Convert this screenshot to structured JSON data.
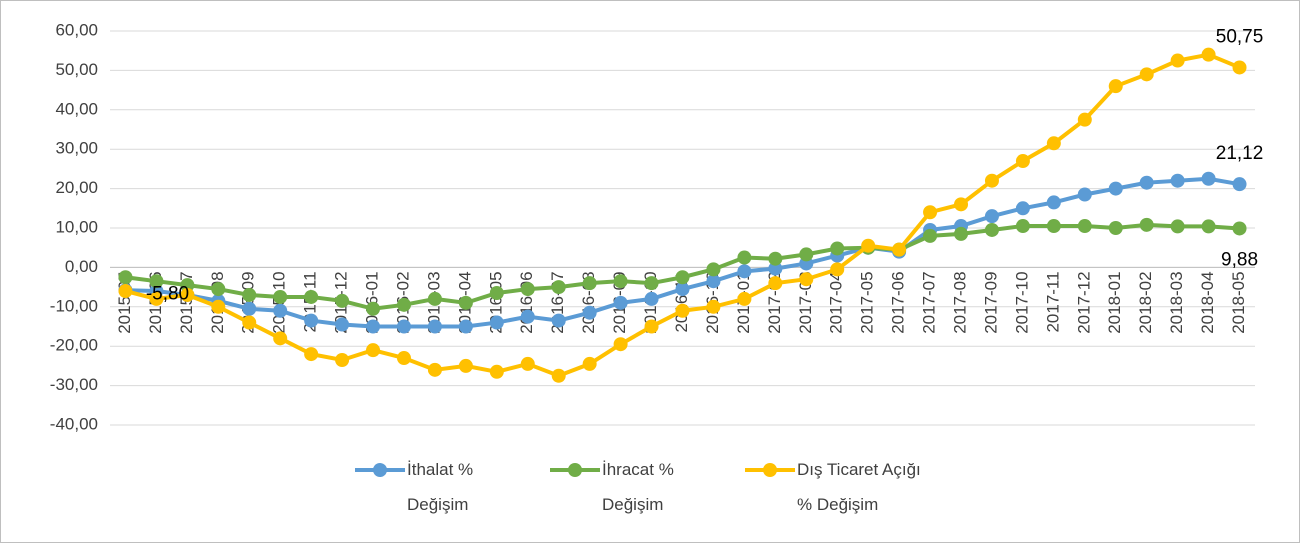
{
  "chart_data": {
    "type": "line",
    "categories": [
      "2015-05",
      "2015-06",
      "2015-07",
      "2015-08",
      "2015-09",
      "2015-10",
      "2015-11",
      "2015-12",
      "2016-01",
      "2016-02",
      "2016-03",
      "2016-04",
      "2016-05",
      "2016-06",
      "2016-07",
      "2016-08",
      "2016-09",
      "2016-10",
      "2016-11",
      "2016-12",
      "2017-01",
      "2017-02",
      "2017-03",
      "2017-04",
      "2017-05",
      "2017-06",
      "2017-07",
      "2017-08",
      "2017-09",
      "2017-10",
      "2017-11",
      "2017-12",
      "2018-01",
      "2018-02",
      "2018-03",
      "2018-04",
      "2018-05"
    ],
    "series": [
      {
        "name": "İthalat % Değişim",
        "color": "#5b9bd5",
        "values": [
          -5.8,
          -6,
          -7,
          -8.5,
          -10.5,
          -11,
          -13.5,
          -14.5,
          -15,
          -15,
          -15,
          -15,
          -14,
          -12.5,
          -13.5,
          -11.5,
          -9,
          -8,
          -5.5,
          -3.5,
          -1,
          -0.3,
          1,
          3,
          5,
          4,
          9.5,
          10.5,
          13,
          15,
          16.5,
          18.5,
          20,
          21.5,
          22,
          22.5,
          21.12
        ],
        "value_labels": [
          "-5,80",
          null,
          null,
          null,
          null,
          null,
          null,
          null,
          null,
          null,
          null,
          null,
          null,
          null,
          null,
          null,
          null,
          null,
          null,
          null,
          null,
          null,
          null,
          null,
          null,
          null,
          null,
          null,
          null,
          null,
          null,
          null,
          null,
          null,
          null,
          null,
          "21,12"
        ]
      },
      {
        "name": "İhracat % Değişim",
        "color": "#70ad47",
        "values": [
          -2.5,
          -3.5,
          -4.5,
          -5.5,
          -7,
          -7.5,
          -7.5,
          -8.5,
          -10.5,
          -9.5,
          -8,
          -9,
          -6.5,
          -5.5,
          -5,
          -4,
          -3.5,
          -4,
          -2.5,
          -0.5,
          2.5,
          2.2,
          3.3,
          4.8,
          5,
          4.5,
          8,
          8.5,
          9.5,
          10.5,
          10.5,
          10.5,
          10,
          10.8,
          10.4,
          10.4,
          9.88
        ],
        "value_labels": [
          null,
          null,
          null,
          null,
          null,
          null,
          null,
          null,
          null,
          null,
          null,
          null,
          null,
          null,
          null,
          null,
          null,
          null,
          null,
          null,
          null,
          null,
          null,
          null,
          null,
          null,
          null,
          null,
          null,
          null,
          null,
          null,
          null,
          null,
          null,
          null,
          "9,88"
        ]
      },
      {
        "name": "Dış Ticaret Açığı % Değişim",
        "color": "#ffc000",
        "values": [
          -6,
          -8,
          -7,
          -10,
          -14,
          -18,
          -22,
          -23.5,
          -21,
          -23,
          -26,
          -25,
          -26.5,
          -24.5,
          -27.5,
          -24.5,
          -19.5,
          -15,
          -11,
          -10,
          -8,
          -4,
          -3,
          -0.5,
          5.5,
          4.5,
          14,
          16,
          22,
          27,
          31.5,
          37.5,
          46,
          49,
          52.5,
          54,
          50.75
        ],
        "value_labels": [
          null,
          null,
          null,
          null,
          null,
          null,
          null,
          null,
          null,
          null,
          null,
          null,
          null,
          null,
          null,
          null,
          null,
          null,
          null,
          null,
          null,
          null,
          null,
          null,
          null,
          null,
          null,
          null,
          null,
          null,
          null,
          null,
          null,
          null,
          null,
          null,
          "50,75"
        ]
      }
    ],
    "ylim": [
      -40,
      60
    ],
    "yticks": [
      {
        "value": -40,
        "label": "-40,00"
      },
      {
        "value": -30,
        "label": "-30,00"
      },
      {
        "value": -20,
        "label": "-20,00"
      },
      {
        "value": -10,
        "label": "-10,00"
      },
      {
        "value": 0,
        "label": "0,00"
      },
      {
        "value": 10,
        "label": "10,00"
      },
      {
        "value": 20,
        "label": "20,00"
      },
      {
        "value": 30,
        "label": "30,00"
      },
      {
        "value": 40,
        "label": "40,00"
      },
      {
        "value": 50,
        "label": "50,00"
      },
      {
        "value": 60,
        "label": "60,00"
      }
    ],
    "grid": true,
    "legend": "bottom"
  }
}
